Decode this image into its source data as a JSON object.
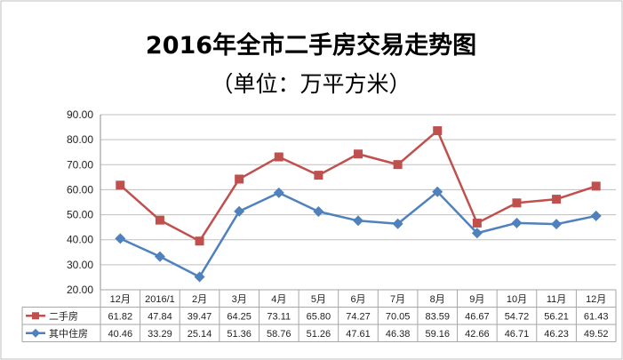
{
  "chart_data": {
    "type": "line",
    "title": "2016年全市二手房交易走势图",
    "subtitle": "（单位：万平方米）",
    "categories": [
      "12月",
      "2016/1",
      "2月",
      "3月",
      "4月",
      "5月",
      "6月",
      "7月",
      "8月",
      "9月",
      "10月",
      "11月",
      "12月"
    ],
    "y_ticks": [
      "20.00",
      "30.00",
      "40.00",
      "50.00",
      "60.00",
      "70.00",
      "80.00",
      "90.00"
    ],
    "ylim": [
      20,
      90
    ],
    "grid": true,
    "legend": "bottom-table",
    "series": [
      {
        "name": "二手房",
        "color": "#c0504d",
        "marker": "square",
        "values": [
          61.82,
          47.84,
          39.47,
          64.25,
          73.11,
          65.8,
          74.27,
          70.05,
          83.59,
          46.67,
          54.72,
          56.21,
          61.43
        ],
        "labels": [
          "61.82",
          "47.84",
          "39.47",
          "64.25",
          "73.11",
          "65.80",
          "74.27",
          "70.05",
          "83.59",
          "46.67",
          "54.72",
          "56.21",
          "61.43"
        ]
      },
      {
        "name": "其中住房",
        "color": "#4f81bd",
        "marker": "diamond",
        "values": [
          40.46,
          33.29,
          25.14,
          51.36,
          58.76,
          51.26,
          47.61,
          46.38,
          59.16,
          42.66,
          46.71,
          46.23,
          49.52
        ],
        "labels": [
          "40.46",
          "33.29",
          "25.14",
          "51.36",
          "58.76",
          "51.26",
          "47.61",
          "46.38",
          "59.16",
          "42.66",
          "46.71",
          "46.23",
          "49.52"
        ]
      }
    ]
  }
}
